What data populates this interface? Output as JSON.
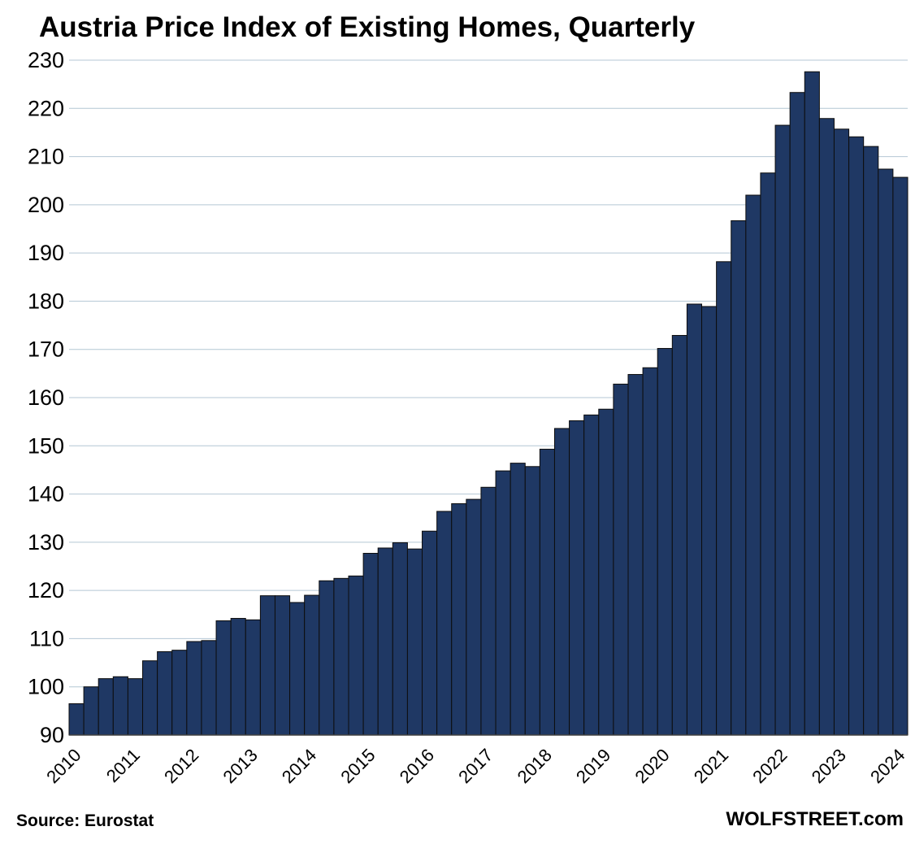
{
  "chart_data": {
    "type": "bar",
    "title": "Austria Price Index of Existing Homes, Quarterly",
    "source": "Source: Eurostat",
    "brand": "WOLFSTREET.com",
    "xlabel": "",
    "ylabel": "",
    "ylim": [
      90,
      230
    ],
    "yticks": [
      90,
      100,
      110,
      120,
      130,
      140,
      150,
      160,
      170,
      180,
      190,
      200,
      210,
      220,
      230
    ],
    "year_labels": [
      "2010",
      "2011",
      "2012",
      "2013",
      "2014",
      "2015",
      "2016",
      "2017",
      "2018",
      "2019",
      "2020",
      "2021",
      "2022",
      "2023",
      "2024"
    ],
    "grid": true,
    "legend": "none",
    "bar_color": "#1f3864",
    "categories": [
      "2010 Q1",
      "2010 Q2",
      "2010 Q3",
      "2010 Q4",
      "2011 Q1",
      "2011 Q2",
      "2011 Q3",
      "2011 Q4",
      "2012 Q1",
      "2012 Q2",
      "2012 Q3",
      "2012 Q4",
      "2013 Q1",
      "2013 Q2",
      "2013 Q3",
      "2013 Q4",
      "2014 Q1",
      "2014 Q2",
      "2014 Q3",
      "2014 Q4",
      "2015 Q1",
      "2015 Q2",
      "2015 Q3",
      "2015 Q4",
      "2016 Q1",
      "2016 Q2",
      "2016 Q3",
      "2016 Q4",
      "2017 Q1",
      "2017 Q2",
      "2017 Q3",
      "2017 Q4",
      "2018 Q1",
      "2018 Q2",
      "2018 Q3",
      "2018 Q4",
      "2019 Q1",
      "2019 Q2",
      "2019 Q3",
      "2019 Q4",
      "2020 Q1",
      "2020 Q2",
      "2020 Q3",
      "2020 Q4",
      "2021 Q1",
      "2021 Q2",
      "2021 Q3",
      "2021 Q4",
      "2022 Q1",
      "2022 Q2",
      "2022 Q3",
      "2022 Q4",
      "2023 Q1",
      "2023 Q2",
      "2023 Q3",
      "2023 Q4",
      "2024 Q1"
    ],
    "values": [
      96.5,
      100.0,
      101.7,
      102.1,
      101.7,
      105.4,
      107.3,
      107.6,
      109.4,
      109.6,
      113.7,
      114.2,
      113.9,
      118.9,
      118.9,
      117.5,
      119.0,
      122.0,
      122.5,
      123.0,
      127.7,
      128.8,
      129.9,
      128.6,
      132.3,
      136.4,
      138.0,
      138.9,
      141.4,
      144.8,
      146.4,
      145.7,
      149.3,
      153.6,
      155.2,
      156.4,
      157.6,
      162.8,
      164.8,
      166.2,
      170.2,
      172.9,
      179.4,
      178.9,
      188.2,
      196.7,
      202.0,
      206.6,
      216.5,
      223.3,
      227.6,
      217.9,
      215.7,
      214.1,
      212.1,
      207.4,
      205.7
    ]
  }
}
